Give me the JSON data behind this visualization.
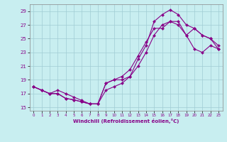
{
  "background_color": "#c8eef0",
  "grid_color": "#a0ccd4",
  "line_color": "#880088",
  "xlim": [
    -0.5,
    23.5
  ],
  "ylim": [
    14.5,
    30.0
  ],
  "xticks": [
    0,
    1,
    2,
    3,
    4,
    5,
    6,
    7,
    8,
    9,
    10,
    11,
    12,
    13,
    14,
    15,
    16,
    17,
    18,
    19,
    20,
    21,
    22,
    23
  ],
  "yticks": [
    15,
    17,
    19,
    21,
    23,
    25,
    27,
    29
  ],
  "xlabel": "Windchill (Refroidissement éolien,°C)",
  "curve1_x": [
    0,
    1,
    2,
    3,
    4,
    5,
    6,
    7,
    8,
    9,
    10,
    11,
    12,
    13,
    14,
    15,
    16,
    17,
    18,
    19,
    20,
    21,
    22,
    23
  ],
  "curve1_y": [
    18.0,
    17.5,
    17.0,
    17.0,
    16.3,
    16.1,
    15.8,
    15.5,
    15.5,
    17.5,
    18.0,
    18.5,
    19.5,
    21.0,
    23.0,
    25.5,
    27.0,
    27.5,
    27.0,
    25.5,
    23.5,
    23.0,
    24.0,
    23.5
  ],
  "curve2_x": [
    0,
    1,
    2,
    3,
    4,
    5,
    6,
    7,
    8,
    9,
    10,
    11,
    12,
    13,
    14,
    15,
    16,
    17,
    18,
    19,
    20,
    21,
    22,
    23
  ],
  "curve2_y": [
    18.0,
    17.5,
    17.0,
    17.0,
    16.3,
    16.1,
    15.8,
    15.5,
    15.5,
    18.5,
    19.0,
    19.0,
    19.5,
    22.0,
    24.0,
    27.5,
    28.5,
    29.2,
    28.5,
    27.0,
    26.5,
    25.5,
    25.0,
    23.5
  ],
  "curve3_x": [
    0,
    1,
    2,
    3,
    4,
    5,
    6,
    7,
    8,
    9,
    10,
    11,
    12,
    13,
    14,
    15,
    16,
    17,
    18,
    19,
    20,
    21,
    22,
    23
  ],
  "curve3_y": [
    18.0,
    17.5,
    17.0,
    17.5,
    17.0,
    16.5,
    16.0,
    15.5,
    15.5,
    18.5,
    19.0,
    19.5,
    20.5,
    22.5,
    24.5,
    26.5,
    26.5,
    27.5,
    27.5,
    25.5,
    26.5,
    25.5,
    25.0,
    24.0
  ]
}
